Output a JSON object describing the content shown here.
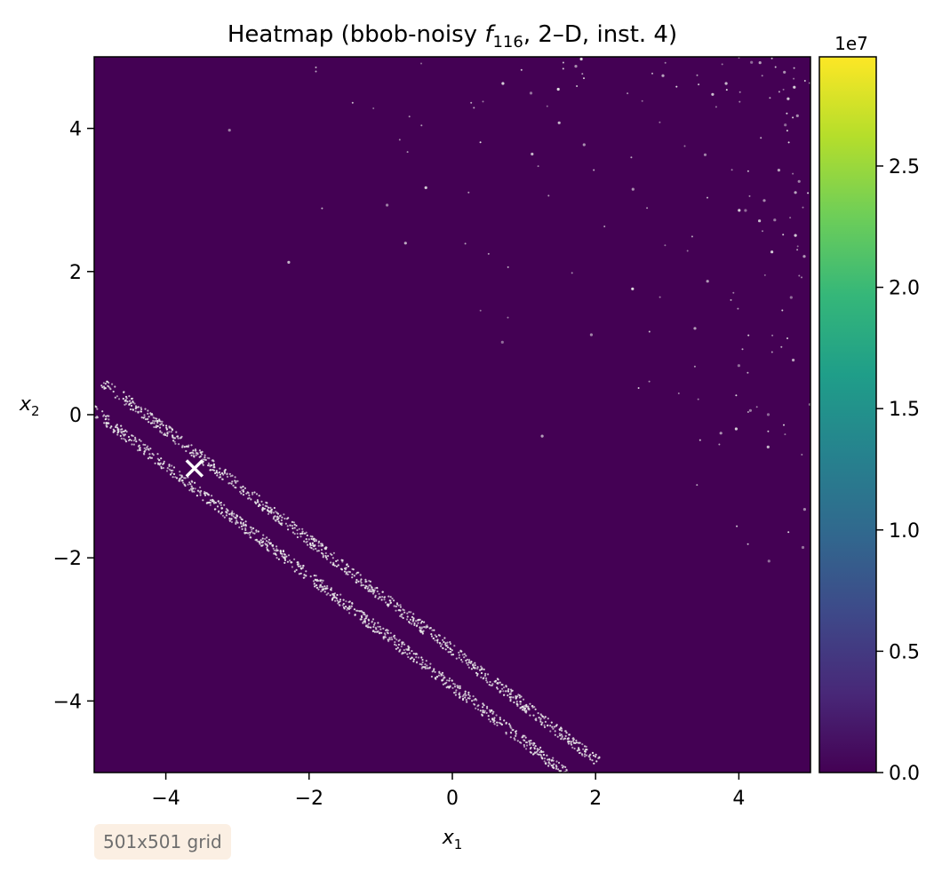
{
  "chart_data": {
    "type": "heatmap",
    "title": "Heatmap (bbob-noisy f116, 2–D, inst. 4)",
    "title_parts": {
      "prefix": "Heatmap (bbob-noisy ",
      "func": "f",
      "func_sub": "116",
      "suffix": ", 2–D, inst. 4)"
    },
    "xlabel": {
      "base": "x",
      "sub": "1"
    },
    "ylabel": {
      "base": "x",
      "sub": "2"
    },
    "xlim": [
      -5,
      5
    ],
    "ylim": [
      -5,
      5
    ],
    "xticks": [
      -4,
      -2,
      0,
      2,
      4
    ],
    "yticks": [
      -4,
      -2,
      0,
      2,
      4
    ],
    "xtick_labels": [
      "−4",
      "−2",
      "0",
      "2",
      "4"
    ],
    "ytick_labels": [
      "−4",
      "−2",
      "0",
      "2",
      "4"
    ],
    "colormap": "viridis",
    "background_color": "#440154",
    "point_color": "#e8e8e8",
    "colorbar": {
      "range": [
        0,
        29500000
      ],
      "ticks": [
        0,
        5000000,
        10000000,
        15000000,
        20000000,
        25000000
      ],
      "tick_labels": [
        "0.0",
        "0.5",
        "1.0",
        "1.5",
        "2.0",
        "2.5"
      ],
      "offset_label": "1e7",
      "colors": [
        "#440154",
        "#482878",
        "#3e4989",
        "#31688e",
        "#26828e",
        "#1f9e89",
        "#35b779",
        "#6ece58",
        "#b5de2b",
        "#fde725"
      ]
    },
    "optimum_marker": {
      "x": -3.6,
      "y": -0.75,
      "symbol": "x",
      "color": "#ffffff"
    },
    "valley_band": {
      "x_start": -5.0,
      "y_start": 0.3,
      "x_end": 1.9,
      "y_end": -5.0,
      "width": 0.4
    },
    "grid": false,
    "annotation": "501x501 grid"
  }
}
